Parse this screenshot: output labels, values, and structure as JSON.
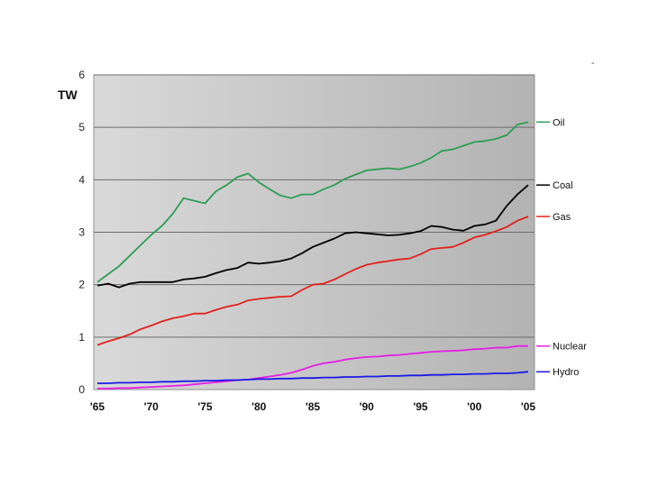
{
  "chart_data": {
    "type": "line",
    "unit_label": "TW",
    "x_tick_labels": [
      "'65",
      "'70",
      "'75",
      "'80",
      "'85",
      "'90",
      "'95",
      "'00",
      "'05"
    ],
    "y_ticks": [
      0,
      1,
      2,
      3,
      4,
      5,
      6
    ],
    "ylim": [
      0,
      6
    ],
    "xlim": [
      1965,
      2005
    ],
    "grid": true,
    "legend_position": "right",
    "x": [
      1965,
      1966,
      1967,
      1968,
      1969,
      1970,
      1971,
      1972,
      1973,
      1974,
      1975,
      1976,
      1977,
      1978,
      1979,
      1980,
      1981,
      1982,
      1983,
      1984,
      1985,
      1986,
      1987,
      1988,
      1989,
      1990,
      1991,
      1992,
      1993,
      1994,
      1995,
      1996,
      1997,
      1998,
      1999,
      2000,
      2001,
      2002,
      2003,
      2004,
      2005
    ],
    "series": [
      {
        "name": "Oil",
        "color": "#2e9e55",
        "values": [
          2.05,
          2.2,
          2.35,
          2.55,
          2.75,
          2.95,
          3.12,
          3.35,
          3.65,
          3.6,
          3.55,
          3.78,
          3.9,
          4.05,
          4.12,
          3.95,
          3.82,
          3.7,
          3.65,
          3.72,
          3.72,
          3.82,
          3.9,
          4.02,
          4.1,
          4.18,
          4.2,
          4.22,
          4.2,
          4.25,
          4.32,
          4.42,
          4.55,
          4.58,
          4.65,
          4.72,
          4.74,
          4.78,
          4.85,
          5.05,
          5.1
        ]
      },
      {
        "name": "Coal",
        "color": "#000000",
        "values": [
          1.98,
          2.02,
          1.95,
          2.02,
          2.05,
          2.05,
          2.05,
          2.05,
          2.1,
          2.12,
          2.15,
          2.22,
          2.28,
          2.32,
          2.42,
          2.4,
          2.42,
          2.45,
          2.5,
          2.6,
          2.72,
          2.8,
          2.88,
          2.98,
          3.0,
          2.98,
          2.96,
          2.94,
          2.95,
          2.98,
          3.02,
          3.12,
          3.1,
          3.05,
          3.03,
          3.12,
          3.15,
          3.22,
          3.5,
          3.72,
          3.9
        ]
      },
      {
        "name": "Gas",
        "color": "#e3211b",
        "values": [
          0.85,
          0.92,
          0.98,
          1.05,
          1.15,
          1.22,
          1.3,
          1.36,
          1.4,
          1.45,
          1.45,
          1.52,
          1.58,
          1.62,
          1.7,
          1.73,
          1.75,
          1.77,
          1.78,
          1.9,
          2.0,
          2.02,
          2.1,
          2.2,
          2.3,
          2.38,
          2.42,
          2.45,
          2.48,
          2.5,
          2.58,
          2.68,
          2.7,
          2.72,
          2.8,
          2.9,
          2.95,
          3.02,
          3.1,
          3.22,
          3.3
        ]
      },
      {
        "name": "Nuclear",
        "color": "#e61de6",
        "values": [
          0.02,
          0.02,
          0.03,
          0.03,
          0.04,
          0.05,
          0.06,
          0.07,
          0.08,
          0.1,
          0.12,
          0.14,
          0.16,
          0.18,
          0.19,
          0.22,
          0.25,
          0.28,
          0.32,
          0.38,
          0.45,
          0.5,
          0.53,
          0.57,
          0.6,
          0.62,
          0.63,
          0.65,
          0.66,
          0.68,
          0.7,
          0.72,
          0.73,
          0.74,
          0.75,
          0.77,
          0.78,
          0.8,
          0.8,
          0.83,
          0.83
        ]
      },
      {
        "name": "Hydro",
        "color": "#1a1ae6",
        "values": [
          0.12,
          0.12,
          0.13,
          0.13,
          0.14,
          0.14,
          0.15,
          0.15,
          0.16,
          0.16,
          0.17,
          0.17,
          0.18,
          0.18,
          0.19,
          0.2,
          0.2,
          0.21,
          0.21,
          0.22,
          0.22,
          0.23,
          0.23,
          0.24,
          0.24,
          0.25,
          0.25,
          0.26,
          0.26,
          0.27,
          0.27,
          0.28,
          0.28,
          0.29,
          0.29,
          0.3,
          0.3,
          0.31,
          0.31,
          0.32,
          0.34
        ]
      }
    ]
  },
  "decor": {
    "corner_mark": "-"
  }
}
